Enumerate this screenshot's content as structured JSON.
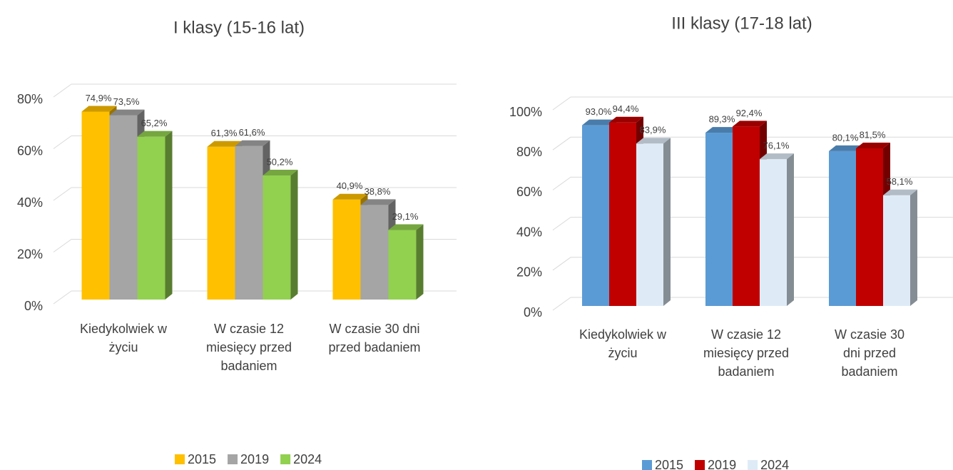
{
  "chart_data": [
    {
      "type": "bar3d",
      "title": "I klasy (15-16 lat)",
      "categories": [
        "Kiedykolwiek w życiu",
        "W czasie 12 miesięcy przed badaniem",
        "W czasie 30 dni przed badaniem"
      ],
      "series": [
        {
          "name": "2015",
          "color": "#ffc000",
          "values": [
            74.9,
            61.3,
            40.9
          ],
          "value_labels": [
            "74,9%",
            "61,3%",
            "40,9%"
          ]
        },
        {
          "name": "2019",
          "color": "#a5a5a5",
          "values": [
            73.5,
            61.6,
            38.8
          ],
          "value_labels": [
            "73,5%",
            "61,6%",
            "38,8%"
          ]
        },
        {
          "name": "2024",
          "color": "#92d050",
          "values": [
            65.2,
            50.2,
            29.1
          ],
          "value_labels": [
            "65,2%",
            "50,2%",
            "29,1%"
          ]
        }
      ],
      "ylim": [
        0,
        80
      ],
      "yticks": [
        {
          "value": 0,
          "label": "0%"
        },
        {
          "value": 20,
          "label": "20%"
        },
        {
          "value": 40,
          "label": "40%"
        },
        {
          "value": 60,
          "label": "60%"
        },
        {
          "value": 80,
          "label": "80%"
        }
      ],
      "grid": true,
      "legend": "bottom"
    },
    {
      "type": "bar3d",
      "title": "III klasy (17-18 lat)",
      "categories": [
        "Kiedykolwiek w życiu",
        "W czasie 12 miesięcy przed badaniem",
        "W czasie 30 dni przed badaniem"
      ],
      "series": [
        {
          "name": "2015",
          "color": "#5b9bd5",
          "values": [
            93.0,
            89.3,
            80.1
          ],
          "value_labels": [
            "93,0%",
            "89,3%",
            "80,1%"
          ]
        },
        {
          "name": "2019",
          "color": "#c00000",
          "values": [
            94.4,
            92.4,
            81.5
          ],
          "value_labels": [
            "94,4%",
            "92,4%",
            "81,5%"
          ]
        },
        {
          "name": "2024",
          "color": "#deebf7",
          "values": [
            83.9,
            76.1,
            58.1
          ],
          "value_labels": [
            "83,9%",
            "76,1%",
            "58,1%"
          ]
        }
      ],
      "ylim": [
        0,
        100
      ],
      "yticks": [
        {
          "value": 0,
          "label": "0%"
        },
        {
          "value": 20,
          "label": "20%"
        },
        {
          "value": 40,
          "label": "40%"
        },
        {
          "value": 60,
          "label": "60%"
        },
        {
          "value": 80,
          "label": "80%"
        },
        {
          "value": 100,
          "label": "100%"
        }
      ],
      "grid": true,
      "legend": "bottom"
    }
  ]
}
